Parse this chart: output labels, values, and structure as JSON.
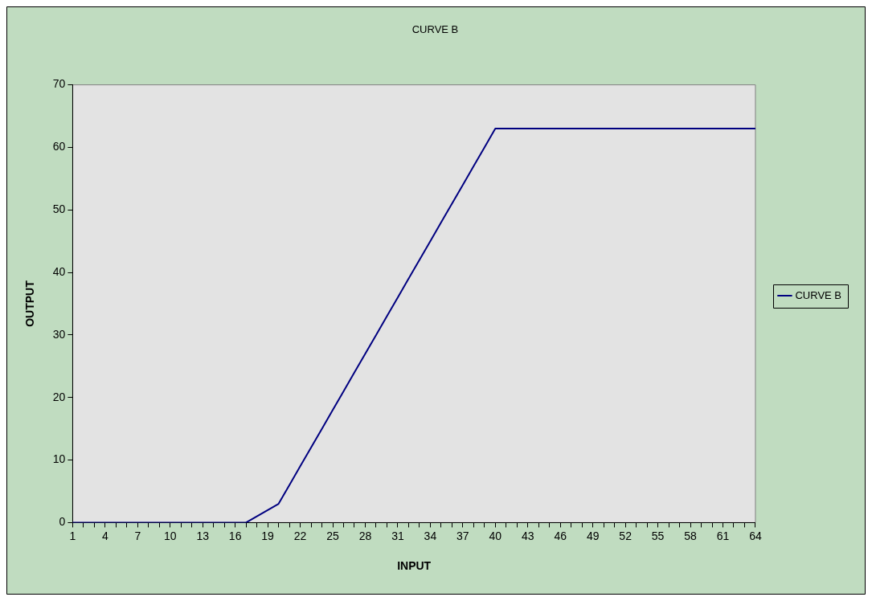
{
  "chart_data": {
    "type": "line",
    "title": "CURVE B",
    "xlabel": "INPUT",
    "ylabel": "OUTPUT",
    "categories": [
      "1",
      null,
      null,
      "4",
      null,
      null,
      "7",
      null,
      null,
      "10",
      null,
      null,
      "13",
      null,
      null,
      "16",
      null,
      null,
      "19",
      null,
      null,
      "22",
      null,
      null,
      "25",
      null,
      null,
      "28",
      null,
      null,
      "31",
      null,
      null,
      "34",
      null,
      null,
      "37",
      null,
      null,
      "40",
      null,
      null,
      "43",
      null,
      null,
      "46",
      null,
      null,
      "49",
      null,
      null,
      "52",
      null,
      null,
      "55",
      null,
      null,
      "58",
      null,
      null,
      "61",
      null,
      null,
      "64"
    ],
    "series": [
      {
        "name": "CURVE B",
        "color": "#000080",
        "values": [
          0,
          0,
          0,
          0,
          0,
          0,
          0,
          0,
          0,
          0,
          0,
          0,
          0,
          0,
          0,
          0,
          0,
          1,
          2,
          3,
          6,
          9,
          12,
          15,
          18,
          21,
          24,
          27,
          30,
          33,
          36,
          39,
          42,
          45,
          48,
          51,
          54,
          57,
          60,
          63,
          63,
          63,
          63,
          63,
          63,
          63,
          63,
          63,
          63,
          63,
          63,
          63,
          63,
          63,
          63,
          63,
          63,
          63,
          63,
          63,
          63,
          63,
          63,
          63
        ]
      }
    ],
    "ylim": [
      0,
      70
    ],
    "yticks": [
      0,
      10,
      20,
      30,
      40,
      50,
      60,
      70
    ],
    "grid": false,
    "legend": "right",
    "marker": "none",
    "line_style": "solid"
  }
}
